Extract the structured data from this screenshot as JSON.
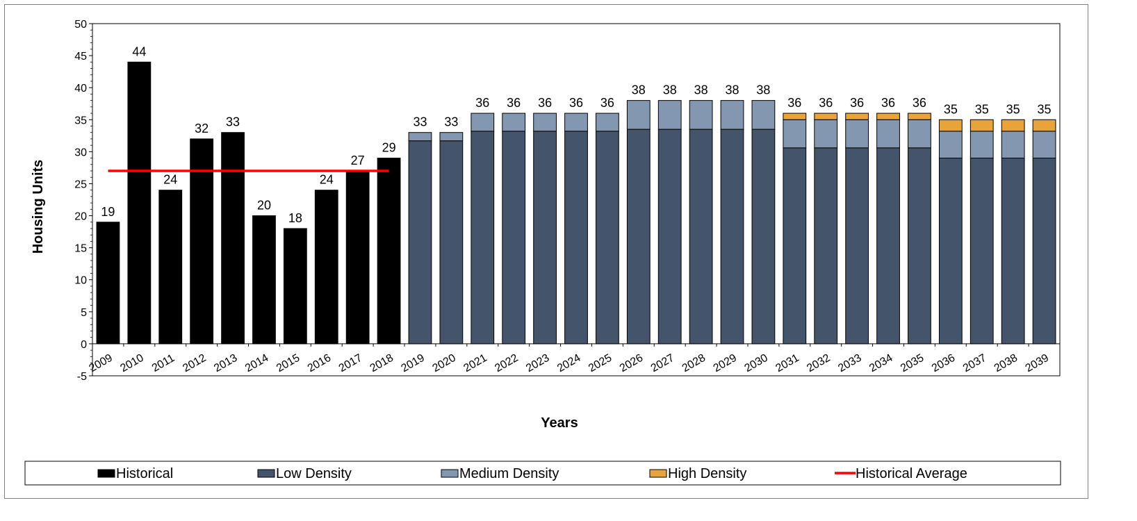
{
  "chart_data": {
    "type": "bar",
    "stacked": true,
    "xlabel": "Years",
    "ylabel": "Housing Units",
    "ylim": [
      -5,
      50
    ],
    "yticks": [
      -5,
      0,
      5,
      10,
      15,
      20,
      25,
      30,
      35,
      40,
      45,
      50
    ],
    "categories": [
      "2009",
      "2010",
      "2011",
      "2012",
      "2013",
      "2014",
      "2015",
      "2016",
      "2017",
      "2018",
      "2019",
      "2020",
      "2021",
      "2022",
      "2023",
      "2024",
      "2025",
      "2026",
      "2027",
      "2028",
      "2029",
      "2030",
      "2031",
      "2032",
      "2033",
      "2034",
      "2035",
      "2036",
      "2037",
      "2038",
      "2039"
    ],
    "series": [
      {
        "name": "Historical",
        "color": "#000000",
        "values": [
          19,
          44,
          24,
          32,
          33,
          20,
          18,
          24,
          27,
          29,
          0,
          0,
          0,
          0,
          0,
          0,
          0,
          0,
          0,
          0,
          0,
          0,
          0,
          0,
          0,
          0,
          0,
          0,
          0,
          0,
          0
        ]
      },
      {
        "name": "Low Density",
        "color": "#44546a",
        "values": [
          0,
          0,
          0,
          0,
          0,
          0,
          0,
          0,
          0,
          0,
          31.7,
          31.7,
          33.2,
          33.2,
          33.2,
          33.2,
          33.2,
          33.5,
          33.5,
          33.5,
          33.5,
          33.5,
          30.6,
          30.6,
          30.6,
          30.6,
          30.6,
          29,
          29,
          29,
          29
        ]
      },
      {
        "name": "Medium Density",
        "color": "#8497b0",
        "values": [
          0,
          0,
          0,
          0,
          0,
          0,
          0,
          0,
          0,
          0,
          1.3,
          1.3,
          2.8,
          2.8,
          2.8,
          2.8,
          2.8,
          4.5,
          4.5,
          4.5,
          4.5,
          4.5,
          4.4,
          4.4,
          4.4,
          4.4,
          4.4,
          4.2,
          4.2,
          4.2,
          4.2
        ]
      },
      {
        "name": "High Density",
        "color": "#e8a33a",
        "values": [
          0,
          0,
          0,
          0,
          0,
          0,
          0,
          0,
          0,
          0,
          0,
          0,
          0,
          0,
          0,
          0,
          0,
          0,
          0,
          0,
          0,
          0,
          1,
          1,
          1,
          1,
          1,
          1.8,
          1.8,
          1.8,
          1.8
        ]
      }
    ],
    "totals": [
      19,
      44,
      24,
      32,
      33,
      20,
      18,
      24,
      27,
      29,
      33,
      33,
      36,
      36,
      36,
      36,
      36,
      38,
      38,
      38,
      38,
      38,
      36,
      36,
      36,
      36,
      36,
      35,
      35,
      35,
      35
    ],
    "average_line": {
      "name": "Historical Average",
      "value": 27,
      "from": "2009",
      "to": "2018",
      "color": "#ff0000"
    },
    "legend": {
      "position": "bottom",
      "items": [
        {
          "label": "Historical",
          "color": "#000000",
          "kind": "box"
        },
        {
          "label": "Low Density",
          "color": "#44546a",
          "kind": "box"
        },
        {
          "label": "Medium Density",
          "color": "#8497b0",
          "kind": "box"
        },
        {
          "label": "High Density",
          "color": "#e8a33a",
          "kind": "box"
        },
        {
          "label": "Historical Average",
          "color": "#ff0000",
          "kind": "line"
        }
      ]
    },
    "grid": false
  }
}
